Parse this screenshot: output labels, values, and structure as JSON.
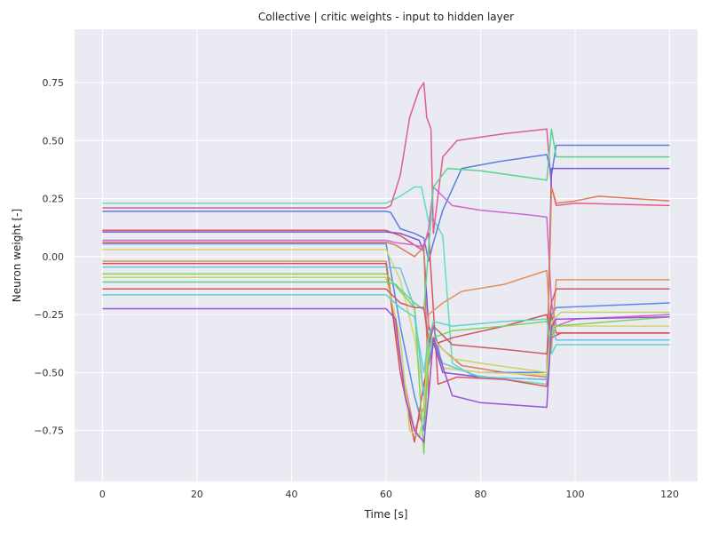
{
  "chart_data": {
    "type": "line",
    "title": "Collective | critic weights - input to hidden layer",
    "xlabel": "Time [s]",
    "ylabel": "Neuron weight [-]",
    "xlim": [
      -5.9,
      125.9
    ],
    "ylim": [
      -0.97,
      0.98
    ],
    "xticks": [
      0,
      20,
      40,
      60,
      80,
      100,
      120
    ],
    "yticks": [
      -0.75,
      -0.5,
      -0.25,
      0.0,
      0.25,
      0.5,
      0.75
    ],
    "ytick_labels": [
      "−0.75",
      "−0.50",
      "−0.25",
      "0.00",
      "0.25",
      "0.50",
      "0.75"
    ],
    "grid": true,
    "background": "#eaeaf2",
    "series": [
      {
        "color": "#5ee0bb",
        "values": [
          [
            0,
            0.23
          ],
          [
            60,
            0.23
          ],
          [
            63,
            0.26
          ],
          [
            66,
            0.3
          ],
          [
            67.5,
            0.3
          ],
          [
            69,
            0.15
          ],
          [
            70,
            0.16
          ],
          [
            72,
            0.09
          ],
          [
            74,
            -0.46
          ],
          [
            78,
            -0.51
          ],
          [
            85,
            -0.53
          ],
          [
            94,
            -0.55
          ],
          [
            95,
            -0.3
          ],
          [
            96,
            -0.36
          ],
          [
            120,
            -0.36
          ]
        ]
      },
      {
        "color": "#e05c90",
        "values": [
          [
            0,
            0.21
          ],
          [
            60,
            0.21
          ],
          [
            61,
            0.22
          ],
          [
            63,
            0.35
          ],
          [
            65,
            0.6
          ],
          [
            67,
            0.72
          ],
          [
            68,
            0.75
          ],
          [
            68.6,
            0.6
          ],
          [
            69.5,
            0.55
          ],
          [
            70,
            0.1
          ],
          [
            72,
            0.43
          ],
          [
            75,
            0.5
          ],
          [
            85,
            0.53
          ],
          [
            94,
            0.55
          ],
          [
            95,
            0.3
          ],
          [
            96,
            0.22
          ],
          [
            100,
            0.23
          ],
          [
            120,
            0.22
          ]
        ]
      },
      {
        "color": "#5b7fe0",
        "values": [
          [
            0,
            0.195
          ],
          [
            60,
            0.195
          ],
          [
            61,
            0.19
          ],
          [
            63,
            0.12
          ],
          [
            66,
            0.1
          ],
          [
            68,
            0.08
          ],
          [
            69,
            -0.02
          ],
          [
            70,
            0.06
          ],
          [
            72,
            0.2
          ],
          [
            76,
            0.38
          ],
          [
            84,
            0.41
          ],
          [
            94,
            0.44
          ],
          [
            95,
            0.35
          ],
          [
            96,
            0.48
          ],
          [
            100,
            0.48
          ],
          [
            120,
            0.48
          ]
        ]
      },
      {
        "color": "#d9545f",
        "values": [
          [
            0,
            0.113
          ],
          [
            60,
            0.113
          ],
          [
            63,
            0.09
          ],
          [
            66,
            0.05
          ],
          [
            67.5,
            0.03
          ],
          [
            69,
            0.1
          ],
          [
            71,
            -0.55
          ],
          [
            75,
            -0.52
          ],
          [
            85,
            -0.53
          ],
          [
            94,
            -0.56
          ],
          [
            95,
            -0.25
          ],
          [
            96,
            -0.33
          ],
          [
            120,
            -0.33
          ]
        ]
      },
      {
        "color": "#7d52d9",
        "values": [
          [
            0,
            0.106
          ],
          [
            60,
            0.106
          ],
          [
            63,
            0.1
          ],
          [
            67,
            0.07
          ],
          [
            68,
            0.02
          ],
          [
            69,
            -0.3
          ],
          [
            72,
            -0.5
          ],
          [
            80,
            -0.52
          ],
          [
            94,
            -0.53
          ],
          [
            95,
            0.38
          ],
          [
            97,
            0.38
          ],
          [
            120,
            0.38
          ]
        ]
      },
      {
        "color": "#d066d4",
        "values": [
          [
            0,
            0.07
          ],
          [
            60,
            0.07
          ],
          [
            62,
            0.06
          ],
          [
            66,
            0.05
          ],
          [
            68,
            0.04
          ],
          [
            69,
            0.12
          ],
          [
            70,
            0.3
          ],
          [
            74,
            0.22
          ],
          [
            80,
            0.2
          ],
          [
            90,
            0.18
          ],
          [
            94,
            0.17
          ],
          [
            95,
            -0.2
          ],
          [
            96,
            -0.3
          ],
          [
            100,
            -0.27
          ],
          [
            120,
            -0.25
          ]
        ]
      },
      {
        "color": "#e07b52",
        "values": [
          [
            0,
            0.062
          ],
          [
            60,
            0.062
          ],
          [
            62,
            0.05
          ],
          [
            66,
            0.0
          ],
          [
            68,
            0.04
          ],
          [
            69,
            -0.6
          ],
          [
            70,
            -0.35
          ],
          [
            72,
            -0.4
          ],
          [
            76,
            -0.47
          ],
          [
            85,
            -0.5
          ],
          [
            94,
            -0.52
          ],
          [
            95,
            0.3
          ],
          [
            96,
            0.23
          ],
          [
            100,
            0.24
          ],
          [
            105,
            0.26
          ],
          [
            120,
            0.24
          ]
        ]
      },
      {
        "color": "#5c8ae0",
        "values": [
          [
            0,
            0.055
          ],
          [
            60,
            0.055
          ],
          [
            63,
            -0.3
          ],
          [
            66,
            -0.6
          ],
          [
            68,
            -0.75
          ],
          [
            69,
            -0.4
          ],
          [
            70,
            -0.3
          ],
          [
            72,
            -0.48
          ],
          [
            80,
            -0.5
          ],
          [
            94,
            -0.5
          ],
          [
            95,
            -0.25
          ],
          [
            96,
            -0.22
          ],
          [
            120,
            -0.2
          ]
        ]
      },
      {
        "color": "#d6d66a",
        "values": [
          [
            0,
            0.03
          ],
          [
            60,
            0.03
          ],
          [
            63,
            -0.1
          ],
          [
            66,
            -0.35
          ],
          [
            68,
            -0.6
          ],
          [
            69,
            -0.42
          ],
          [
            70,
            -0.35
          ],
          [
            72,
            -0.48
          ],
          [
            80,
            -0.5
          ],
          [
            94,
            -0.51
          ],
          [
            95,
            -0.3
          ],
          [
            96,
            -0.3
          ],
          [
            100,
            -0.3
          ],
          [
            120,
            -0.3
          ]
        ]
      },
      {
        "color": "#e0925c",
        "values": [
          [
            0,
            -0.02
          ],
          [
            60,
            -0.02
          ],
          [
            63,
            -0.45
          ],
          [
            66,
            -0.75
          ],
          [
            68,
            -0.65
          ],
          [
            69,
            -0.25
          ],
          [
            72,
            -0.2
          ],
          [
            76,
            -0.15
          ],
          [
            85,
            -0.12
          ],
          [
            94,
            -0.06
          ],
          [
            95,
            -0.4
          ],
          [
            96,
            -0.1
          ],
          [
            120,
            -0.1
          ]
        ]
      },
      {
        "color": "#d94f58",
        "values": [
          [
            0,
            -0.03
          ],
          [
            60,
            -0.03
          ],
          [
            63,
            -0.5
          ],
          [
            66,
            -0.8
          ],
          [
            68,
            -0.55
          ],
          [
            70,
            -0.38
          ],
          [
            74,
            -0.35
          ],
          [
            85,
            -0.3
          ],
          [
            94,
            -0.25
          ],
          [
            95,
            -0.35
          ],
          [
            97,
            -0.33
          ],
          [
            120,
            -0.33
          ]
        ]
      },
      {
        "color": "#6ac3e0",
        "values": [
          [
            0,
            -0.045
          ],
          [
            60,
            -0.045
          ],
          [
            63,
            -0.05
          ],
          [
            66,
            -0.22
          ],
          [
            68,
            -0.6
          ],
          [
            69,
            -0.45
          ],
          [
            70,
            -0.35
          ],
          [
            72,
            -0.46
          ],
          [
            80,
            -0.52
          ],
          [
            94,
            -0.53
          ],
          [
            95,
            -0.3
          ],
          [
            96,
            -0.36
          ],
          [
            120,
            -0.36
          ]
        ]
      },
      {
        "color": "#7ed459",
        "values": [
          [
            0,
            -0.075
          ],
          [
            60,
            -0.075
          ],
          [
            63,
            -0.15
          ],
          [
            66,
            -0.22
          ],
          [
            68,
            -0.85
          ],
          [
            69,
            -0.4
          ],
          [
            70,
            -0.35
          ],
          [
            74,
            -0.32
          ],
          [
            85,
            -0.3
          ],
          [
            94,
            -0.28
          ],
          [
            95,
            -0.35
          ],
          [
            96,
            -0.3
          ],
          [
            120,
            -0.26
          ]
        ]
      },
      {
        "color": "#c5d45e",
        "values": [
          [
            0,
            -0.09
          ],
          [
            60,
            -0.09
          ],
          [
            63,
            -0.35
          ],
          [
            65,
            -0.75
          ],
          [
            67,
            -0.78
          ],
          [
            68,
            -0.68
          ],
          [
            69,
            -0.33
          ],
          [
            71,
            -0.38
          ],
          [
            74,
            -0.44
          ],
          [
            80,
            -0.46
          ],
          [
            94,
            -0.5
          ],
          [
            95,
            -0.28
          ],
          [
            97,
            -0.24
          ],
          [
            120,
            -0.24
          ]
        ]
      },
      {
        "color": "#59d490",
        "values": [
          [
            0,
            -0.11
          ],
          [
            60,
            -0.11
          ],
          [
            62,
            -0.12
          ],
          [
            64,
            -0.16
          ],
          [
            66,
            -0.2
          ],
          [
            68,
            -0.23
          ],
          [
            70,
            0.3
          ],
          [
            73,
            0.38
          ],
          [
            80,
            0.37
          ],
          [
            94,
            0.33
          ],
          [
            95,
            0.55
          ],
          [
            96,
            0.43
          ],
          [
            120,
            0.43
          ]
        ]
      },
      {
        "color": "#d05b5f",
        "values": [
          [
            0,
            -0.14
          ],
          [
            60,
            -0.14
          ],
          [
            63,
            -0.2
          ],
          [
            66,
            -0.22
          ],
          [
            68,
            -0.22
          ],
          [
            69,
            -0.37
          ],
          [
            70,
            -0.3
          ],
          [
            74,
            -0.38
          ],
          [
            85,
            -0.4
          ],
          [
            94,
            -0.42
          ],
          [
            95,
            -0.2
          ],
          [
            96,
            -0.14
          ],
          [
            120,
            -0.14
          ]
        ]
      },
      {
        "color": "#5cd4cf",
        "values": [
          [
            0,
            -0.165
          ],
          [
            60,
            -0.165
          ],
          [
            63,
            -0.22
          ],
          [
            66,
            -0.26
          ],
          [
            68,
            -0.5
          ],
          [
            69,
            -0.35
          ],
          [
            70,
            -0.28
          ],
          [
            74,
            -0.3
          ],
          [
            85,
            -0.28
          ],
          [
            94,
            -0.27
          ],
          [
            95,
            -0.42
          ],
          [
            96,
            -0.38
          ],
          [
            120,
            -0.38
          ]
        ]
      },
      {
        "color": "#9a52d9",
        "values": [
          [
            0,
            -0.225
          ],
          [
            60,
            -0.225
          ],
          [
            62,
            -0.27
          ],
          [
            64,
            -0.6
          ],
          [
            66,
            -0.75
          ],
          [
            68,
            -0.8
          ],
          [
            69,
            -0.6
          ],
          [
            70,
            -0.35
          ],
          [
            74,
            -0.6
          ],
          [
            80,
            -0.63
          ],
          [
            94,
            -0.65
          ],
          [
            95,
            -0.3
          ],
          [
            96,
            -0.27
          ],
          [
            120,
            -0.26
          ]
        ]
      }
    ]
  }
}
